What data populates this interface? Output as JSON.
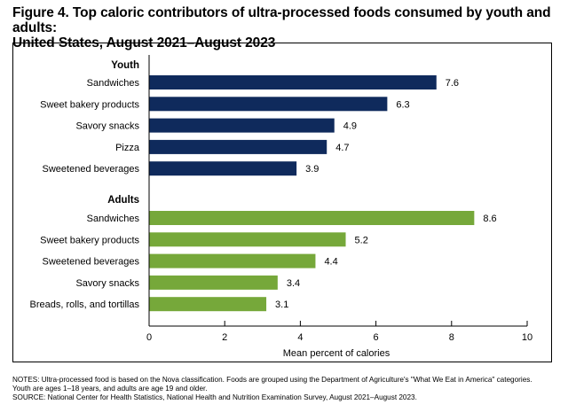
{
  "figure_title_line1": "Figure 4. Top caloric contributors of ultra-processed foods consumed by youth and adults:",
  "figure_title_line2": "United States, August 2021–August 2023",
  "notes_line1": "NOTES: Ultra-processed food is based on the Nova classification. Foods are grouped using the Department of Agriculture's \"What We Eat in America\" categories.",
  "notes_line2": "Youth are ages 1–18 years, and adults are age 19 and older.",
  "notes_line3": "SOURCE: National Center for Health Statistics, National Health and Nutrition Examination Survey, August 2021–August 2023.",
  "colors": {
    "youth": "#0f2a5c",
    "adults": "#76a83a"
  },
  "chart_data": {
    "type": "bar",
    "orientation": "horizontal",
    "xlabel": "Mean percent of calories",
    "xlim": [
      0,
      10
    ],
    "xticks": [
      0,
      2,
      4,
      6,
      8,
      10
    ],
    "grid": false,
    "groups": [
      {
        "name": "Youth",
        "categories": [
          "Sandwiches",
          "Sweet bakery products",
          "Savory snacks",
          "Pizza",
          "Sweetened beverages"
        ],
        "values": [
          7.6,
          6.3,
          4.9,
          4.7,
          3.9
        ],
        "value_labels": [
          "7.6",
          "6.3",
          "4.9",
          "4.7",
          "3.9"
        ]
      },
      {
        "name": "Adults",
        "categories": [
          "Sandwiches",
          "Sweet bakery products",
          "Sweetened beverages",
          "Savory snacks",
          "Breads, rolls, and tortillas"
        ],
        "values": [
          8.6,
          5.2,
          4.4,
          3.4,
          3.1
        ],
        "value_labels": [
          "8.6",
          "5.2",
          "4.4",
          "3.4",
          "3.1"
        ]
      }
    ]
  }
}
